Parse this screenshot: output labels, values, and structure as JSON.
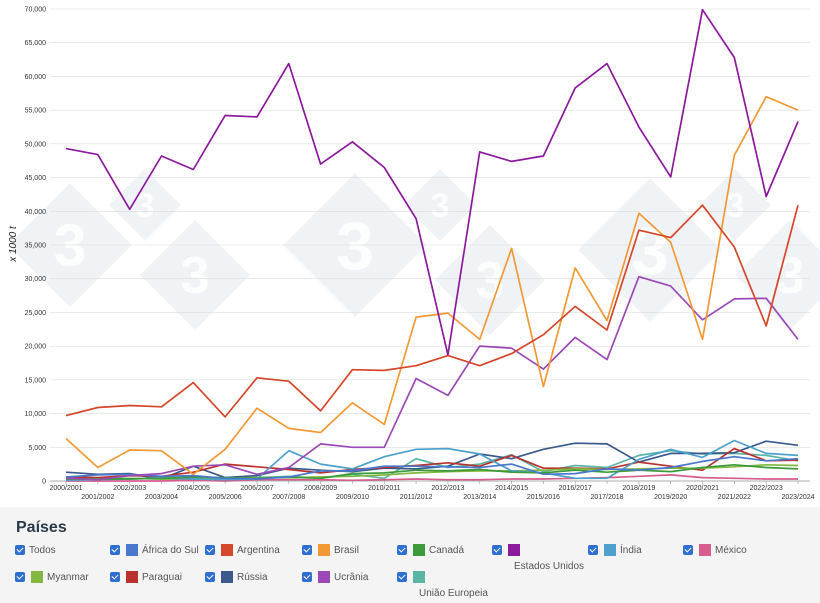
{
  "chart_data": {
    "type": "line",
    "ylabel": "x 1000 t",
    "ylim": [
      0,
      70000
    ],
    "yticks": [
      "0",
      "5,000",
      "10,000",
      "15,000",
      "20,000",
      "25,000",
      "30,000",
      "35,000",
      "40,000",
      "45,000",
      "50,000",
      "55,000",
      "60,000",
      "65,000",
      "70,000"
    ],
    "categories": [
      "2000/2001",
      "2001/2002",
      "2002/2003",
      "2003/2004",
      "2004/2005",
      "2005/2006",
      "2006/2007",
      "2007/2008",
      "2008/2009",
      "2009/2010",
      "2010/2011",
      "2011/2012",
      "2012/2013",
      "2013/2014",
      "2014/2015",
      "2015/2016",
      "2016/2017",
      "2017/2018",
      "2018/2019",
      "2019/2020",
      "2020/2021",
      "2021/2022",
      "2022/2023",
      "2023/2024"
    ],
    "grid": true,
    "legend_placement": "bottom",
    "series": [
      {
        "name": "Estados Unidos",
        "color": "#8b1a9c",
        "values": [
          49300,
          48400,
          40300,
          48200,
          46200,
          54200,
          54000,
          61900,
          47000,
          50300,
          46500,
          38900,
          18700,
          48800,
          47400,
          48200,
          58300,
          61900,
          52500,
          45100,
          69900,
          62800,
          42200,
          53300
        ]
      },
      {
        "name": "Argentina",
        "color": "#d4472a",
        "values": [
          9700,
          10900,
          11200,
          11000,
          14600,
          9500,
          15300,
          14800,
          10400,
          16500,
          16400,
          17100,
          18600,
          17100,
          18900,
          21700,
          25900,
          22400,
          37200,
          36100,
          40900,
          34700,
          23000,
          40900
        ]
      },
      {
        "name": "Brasil",
        "color": "#f19a35",
        "values": [
          6300,
          2000,
          4600,
          4500,
          1000,
          4700,
          10800,
          7800,
          7200,
          11600,
          8400,
          24300,
          24900,
          21000,
          34500,
          14000,
          31600,
          23800,
          39700,
          35400,
          21000,
          48300,
          57000,
          55000
        ]
      },
      {
        "name": "Ucrânia",
        "color": "#9b49b5",
        "values": [
          400,
          200,
          800,
          1100,
          2200,
          2400,
          1000,
          2000,
          5500,
          5000,
          5000,
          15200,
          12700,
          20000,
          19700,
          16600,
          21300,
          18000,
          30300,
          28900,
          23900,
          27000,
          27100,
          21000
        ]
      },
      {
        "name": "África do Sul",
        "color": "#4a78cc",
        "values": [
          600,
          900,
          1000,
          700,
          800,
          400,
          300,
          600,
          1500,
          1500,
          2200,
          2200,
          2100,
          2000,
          2500,
          1000,
          1100,
          1800,
          1600,
          2000,
          2900,
          3600,
          3000,
          3300
        ]
      },
      {
        "name": "Canadá",
        "color": "#3c9a3c",
        "values": [
          300,
          300,
          300,
          400,
          600,
          500,
          400,
          600,
          400,
          1100,
          1200,
          1600,
          1500,
          1700,
          1300,
          1200,
          1600,
          1300,
          1600,
          1400,
          2000,
          2400,
          2000,
          1800
        ]
      },
      {
        "name": "Índia",
        "color": "#4da1cc",
        "values": [
          100,
          200,
          300,
          500,
          300,
          200,
          300,
          4500,
          2500,
          1800,
          3600,
          4700,
          4800,
          4000,
          1500,
          1200,
          400,
          400,
          3200,
          4700,
          3500,
          6000,
          4100,
          3800
        ]
      },
      {
        "name": "México",
        "color": "#d65d8c",
        "values": [
          0,
          0,
          0,
          0,
          100,
          0,
          200,
          200,
          200,
          100,
          200,
          300,
          200,
          200,
          300,
          300,
          400,
          500,
          700,
          900,
          500,
          400,
          300,
          300
        ]
      },
      {
        "name": "Myanmar",
        "color": "#82b83f",
        "values": [
          300,
          300,
          400,
          300,
          400,
          400,
          500,
          500,
          600,
          700,
          900,
          1200,
          1400,
          1500,
          1500,
          1600,
          1800,
          1700,
          1800,
          1900,
          1900,
          2100,
          2400,
          2300
        ]
      },
      {
        "name": "Paraguai",
        "color": "#b8332f",
        "values": [
          600,
          500,
          800,
          700,
          1300,
          2500,
          2100,
          1700,
          1200,
          1700,
          2000,
          2300,
          2700,
          2200,
          3800,
          1900,
          1900,
          1800,
          2800,
          2200,
          1600,
          4800,
          3000,
          3100
        ]
      },
      {
        "name": "Rússia",
        "color": "#3a5a8c",
        "values": [
          1300,
          1000,
          1100,
          300,
          2200,
          500,
          800,
          1900,
          1600,
          1400,
          1900,
          1800,
          2200,
          4000,
          3300,
          4700,
          5600,
          5500,
          2800,
          4100,
          4100,
          4200,
          5900,
          5300
        ]
      },
      {
        "name": "União Europeia",
        "color": "#5bb5a5",
        "values": [
          300,
          300,
          400,
          300,
          200,
          300,
          500,
          700,
          400,
          1000,
          400,
          3300,
          2000,
          2500,
          3900,
          1400,
          2300,
          2000,
          3800,
          4500,
          4000,
          4100,
          3800,
          3000
        ]
      }
    ]
  },
  "legend": {
    "title": "Países",
    "todos_label": "Todos",
    "items": [
      {
        "label": "África do Sul",
        "color": "#4a78cc"
      },
      {
        "label": "Argentina",
        "color": "#d4472a"
      },
      {
        "label": "Brasil",
        "color": "#f19a35"
      },
      {
        "label": "Canadá",
        "color": "#3c9a3c"
      },
      {
        "label": "Estados Unidos",
        "color": "#8b1a9c"
      },
      {
        "label": "Índia",
        "color": "#4da1cc"
      },
      {
        "label": "México",
        "color": "#d65d8c"
      },
      {
        "label": "Myanmar",
        "color": "#82b83f"
      },
      {
        "label": "Paraguai",
        "color": "#b8332f"
      },
      {
        "label": "Rússia",
        "color": "#3a5a8c"
      },
      {
        "label": "Ucrânia",
        "color": "#9b49b5"
      },
      {
        "label": "União Europeia",
        "color": "#5bb5a5"
      }
    ]
  },
  "watermark": {
    "text": "3",
    "color": "#e4e9ef"
  }
}
